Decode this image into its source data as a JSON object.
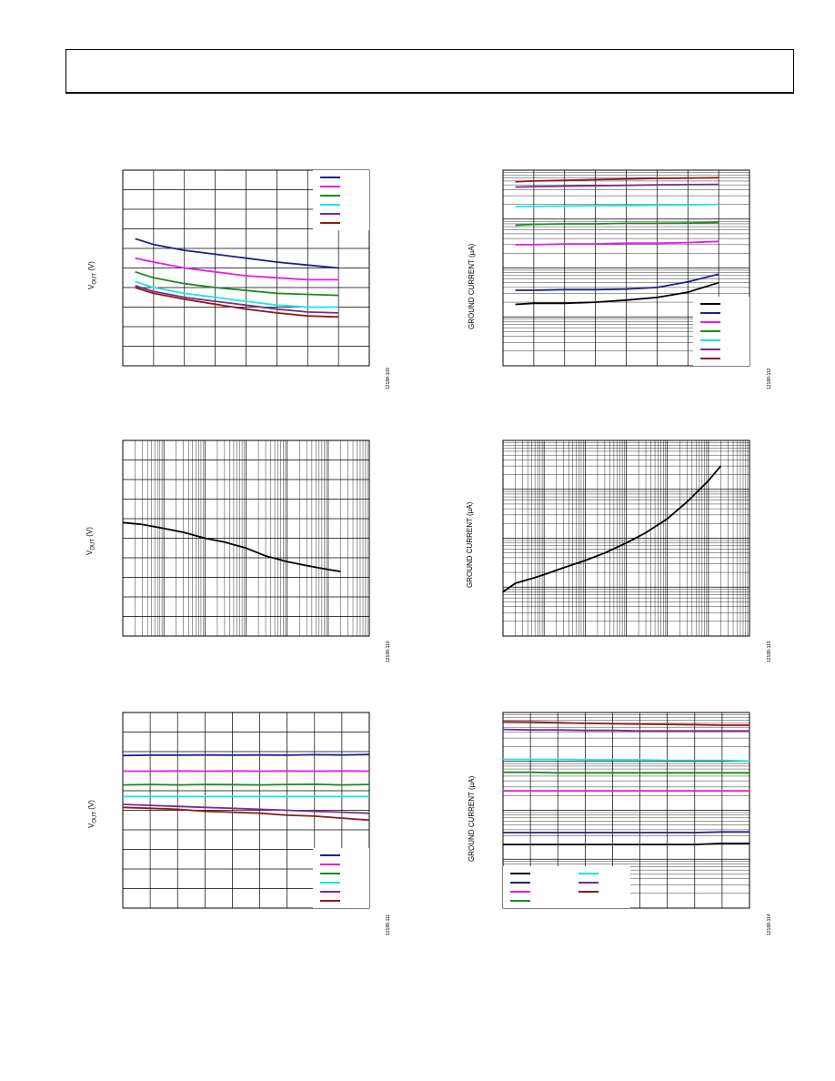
{
  "header": {
    "title": ""
  },
  "chart_data": [
    {
      "id": "c1",
      "type": "line",
      "ylabel": "V_OUT (V)",
      "figure_id": "12188-109",
      "grid": true,
      "x_scale": "linear",
      "y_scale": "linear",
      "xlim": [
        0,
        8
      ],
      "ylim": [
        0,
        10
      ],
      "legend": {
        "placement": "top-right"
      },
      "series": [
        {
          "color": "#1f1f8f",
          "x": [
            0.4,
            1,
            2,
            3,
            4,
            5,
            6,
            7
          ],
          "y": [
            6.5,
            6.2,
            5.9,
            5.7,
            5.5,
            5.3,
            5.15,
            5.0
          ]
        },
        {
          "color": "#e619e6",
          "x": [
            0.4,
            1,
            2,
            3,
            4,
            5,
            6,
            7
          ],
          "y": [
            5.5,
            5.3,
            5.0,
            4.8,
            4.6,
            4.5,
            4.4,
            4.4
          ]
        },
        {
          "color": "#1a8a1a",
          "x": [
            0.4,
            1,
            2,
            3,
            4,
            5,
            6,
            7
          ],
          "y": [
            4.8,
            4.5,
            4.2,
            4.0,
            3.85,
            3.7,
            3.65,
            3.6
          ]
        },
        {
          "color": "#19e6e6",
          "x": [
            0.4,
            1,
            2,
            3,
            4,
            5,
            6,
            7
          ],
          "y": [
            4.3,
            4.0,
            3.7,
            3.5,
            3.3,
            3.1,
            3.0,
            3.0
          ]
        },
        {
          "color": "#7b2a8f",
          "x": [
            0.4,
            1,
            2,
            3,
            4,
            5,
            6,
            7
          ],
          "y": [
            4.1,
            3.8,
            3.5,
            3.3,
            3.1,
            2.9,
            2.75,
            2.7
          ]
        },
        {
          "color": "#8f1a1a",
          "x": [
            0.4,
            1,
            2,
            3,
            4,
            5,
            6,
            7
          ],
          "y": [
            4.0,
            3.7,
            3.4,
            3.15,
            2.9,
            2.7,
            2.55,
            2.5
          ]
        }
      ]
    },
    {
      "id": "c2",
      "type": "line",
      "ylabel": "GROUND CURRENT (µA)",
      "figure_id": "12188-112",
      "grid": true,
      "x_scale": "linear",
      "y_scale": "log",
      "xlim": [
        0,
        8
      ],
      "ylim": [
        0.1,
        1000
      ],
      "legend": {
        "placement": "bottom-right"
      },
      "series": [
        {
          "color": "#000000",
          "x": [
            0.4,
            1,
            2,
            3,
            4,
            5,
            6,
            7
          ],
          "y": [
            1.8,
            1.9,
            1.9,
            2.0,
            2.2,
            2.5,
            3.2,
            5.0
          ]
        },
        {
          "color": "#1f1f8f",
          "x": [
            0.4,
            1,
            2,
            3,
            4,
            5,
            6,
            7
          ],
          "y": [
            3.5,
            3.5,
            3.6,
            3.6,
            3.7,
            4.0,
            5.2,
            7.5
          ]
        },
        {
          "color": "#e619e6",
          "x": [
            0.4,
            1,
            2,
            3,
            4,
            5,
            6,
            7
          ],
          "y": [
            30,
            30,
            31,
            31,
            32,
            32,
            33,
            35
          ]
        },
        {
          "color": "#1a8a1a",
          "x": [
            0.4,
            1,
            2,
            3,
            4,
            5,
            6,
            7
          ],
          "y": [
            75,
            78,
            80,
            80,
            82,
            82,
            83,
            85
          ]
        },
        {
          "color": "#19e6e6",
          "x": [
            0.4,
            1,
            2,
            3,
            4,
            5,
            6,
            7
          ],
          "y": [
            180,
            182,
            185,
            188,
            190,
            192,
            195,
            200
          ]
        },
        {
          "color": "#7b2a8f",
          "x": [
            0.4,
            1,
            2,
            3,
            4,
            5,
            6,
            7
          ],
          "y": [
            450,
            460,
            470,
            480,
            490,
            500,
            505,
            510
          ]
        },
        {
          "color": "#8f1a1a",
          "x": [
            0.4,
            1,
            2,
            3,
            4,
            5,
            6,
            7
          ],
          "y": [
            580,
            600,
            620,
            640,
            660,
            680,
            690,
            700
          ]
        }
      ]
    },
    {
      "id": "c3",
      "type": "line",
      "ylabel": "V_OUT (V)",
      "figure_id": "12188-110",
      "grid": true,
      "x_scale": "log",
      "y_scale": "linear",
      "xlim": [
        0.001,
        1000
      ],
      "ylim": [
        0,
        10
      ],
      "series": [
        {
          "color": "#000000",
          "x": [
            0.001,
            0.003,
            0.01,
            0.03,
            0.1,
            0.3,
            1,
            3,
            10,
            30,
            100,
            200
          ],
          "y": [
            5.8,
            5.7,
            5.5,
            5.3,
            5.0,
            4.8,
            4.5,
            4.1,
            3.8,
            3.6,
            3.4,
            3.3
          ]
        }
      ]
    },
    {
      "id": "c4",
      "type": "line",
      "ylabel": "GROUND CURRENT (µA)",
      "figure_id": "12188-113",
      "grid": true,
      "x_scale": "log",
      "y_scale": "log",
      "xlim": [
        0.001,
        1000
      ],
      "ylim": [
        0.1,
        1000
      ],
      "series": [
        {
          "color": "#000000",
          "x": [
            0.001,
            0.002,
            0.005,
            0.01,
            0.03,
            0.1,
            0.3,
            1,
            3,
            10,
            30,
            100,
            200
          ],
          "y": [
            0.8,
            1.2,
            1.5,
            1.8,
            2.5,
            3.5,
            5.0,
            8.0,
            13,
            25,
            55,
            150,
            300
          ]
        }
      ]
    },
    {
      "id": "c5",
      "type": "line",
      "ylabel": "V_OUT (V)",
      "figure_id": "12188-111",
      "grid": true,
      "x_scale": "linear",
      "y_scale": "linear",
      "xlim": [
        0,
        9
      ],
      "ylim": [
        0,
        10
      ],
      "legend": {
        "placement": "bottom-right"
      },
      "series": [
        {
          "color": "#1f1f8f",
          "x": [
            0,
            1,
            2,
            3,
            4,
            5,
            6,
            7,
            8,
            9
          ],
          "y": [
            7.8,
            7.82,
            7.82,
            7.83,
            7.82,
            7.83,
            7.82,
            7.84,
            7.83,
            7.85
          ]
        },
        {
          "color": "#e619e6",
          "x": [
            0,
            1,
            2,
            3,
            4,
            5,
            6,
            7,
            8,
            9
          ],
          "y": [
            7.0,
            7.0,
            7.01,
            7.0,
            7.01,
            7.0,
            7.01,
            7.0,
            7.01,
            7.0
          ]
        },
        {
          "color": "#1a8a1a",
          "x": [
            0,
            1,
            2,
            3,
            4,
            5,
            6,
            7,
            8,
            9
          ],
          "y": [
            6.3,
            6.32,
            6.3,
            6.32,
            6.31,
            6.3,
            6.32,
            6.33,
            6.3,
            6.32
          ]
        },
        {
          "color": "#19e6e6",
          "x": [
            0,
            1,
            2,
            3,
            4,
            5,
            6,
            7,
            8,
            9
          ],
          "y": [
            5.7,
            5.7,
            5.7,
            5.7,
            5.7,
            5.7,
            5.7,
            5.7,
            5.7,
            5.7
          ]
        },
        {
          "color": "#7b2a8f",
          "x": [
            0,
            1,
            2,
            3,
            4,
            5,
            6,
            7,
            8,
            9
          ],
          "y": [
            5.3,
            5.25,
            5.2,
            5.15,
            5.1,
            5.05,
            5.0,
            4.95,
            4.9,
            4.85
          ]
        },
        {
          "color": "#8f1a1a",
          "x": [
            0,
            1,
            2,
            3,
            4,
            5,
            6,
            7,
            8,
            9
          ],
          "y": [
            5.15,
            5.1,
            5.05,
            4.95,
            4.9,
            4.85,
            4.75,
            4.7,
            4.6,
            4.5
          ]
        }
      ]
    },
    {
      "id": "c6",
      "type": "line",
      "ylabel": "GROUND CURRENT (µA)",
      "figure_id": "12188-114",
      "grid": true,
      "x_scale": "linear",
      "y_scale": "log",
      "xlim": [
        0,
        9
      ],
      "ylim": [
        0.1,
        1000
      ],
      "legend": {
        "placement": "bottom-left",
        "columns": 2
      },
      "series": [
        {
          "color": "#000000",
          "x": [
            0,
            1,
            2,
            3,
            4,
            5,
            6,
            7,
            8,
            9
          ],
          "y": [
            2.0,
            2.0,
            2.0,
            2.0,
            2.0,
            2.0,
            2.0,
            2.0,
            2.1,
            2.1
          ]
        },
        {
          "color": "#1f1f8f",
          "x": [
            0,
            1,
            2,
            3,
            4,
            5,
            6,
            7,
            8,
            9
          ],
          "y": [
            3.5,
            3.5,
            3.5,
            3.5,
            3.5,
            3.5,
            3.5,
            3.5,
            3.6,
            3.6
          ]
        },
        {
          "color": "#e619e6",
          "x": [
            0,
            1,
            2,
            3,
            4,
            5,
            6,
            7,
            8,
            9
          ],
          "y": [
            25,
            25,
            25,
            25,
            25,
            25,
            25,
            25,
            25,
            25
          ]
        },
        {
          "color": "#1a8a1a",
          "x": [
            0,
            1,
            2,
            3,
            4,
            5,
            6,
            7,
            8,
            9
          ],
          "y": [
            60,
            60,
            58,
            58,
            58,
            58,
            58,
            58,
            58,
            58
          ]
        },
        {
          "color": "#19e6e6",
          "x": [
            0,
            1,
            2,
            3,
            4,
            5,
            6,
            7,
            8,
            9
          ],
          "y": [
            110,
            110,
            110,
            108,
            108,
            108,
            105,
            105,
            105,
            102
          ]
        },
        {
          "color": "#7b2a8f",
          "x": [
            0,
            1,
            2,
            3,
            4,
            5,
            6,
            7,
            8,
            9
          ],
          "y": [
            450,
            440,
            440,
            430,
            430,
            420,
            420,
            420,
            420,
            420
          ]
        },
        {
          "color": "#8f1a1a",
          "x": [
            0,
            1,
            2,
            3,
            4,
            5,
            6,
            7,
            8,
            9
          ],
          "y": [
            650,
            640,
            620,
            600,
            590,
            580,
            570,
            560,
            550,
            550
          ]
        }
      ]
    }
  ]
}
